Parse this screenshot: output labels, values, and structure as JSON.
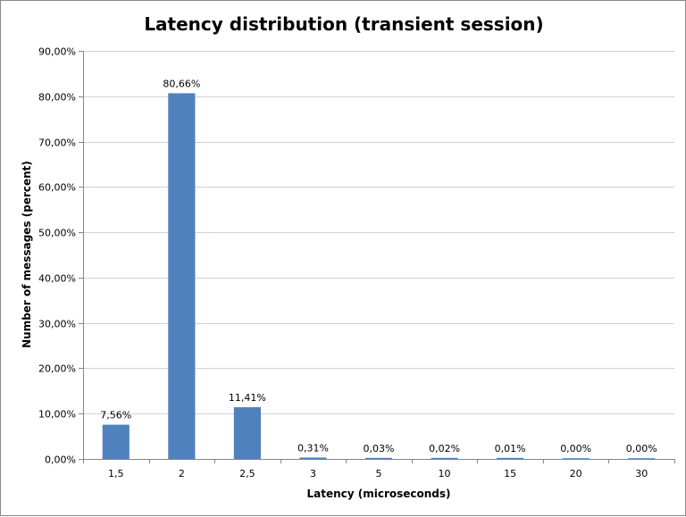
{
  "chart_data": {
    "type": "bar",
    "title": "Latency distribution (transient session)",
    "xlabel": "Latency (microseconds)",
    "ylabel": "Number of messages (percent)",
    "categories": [
      "1,5",
      "2",
      "2,5",
      "3",
      "5",
      "10",
      "15",
      "20",
      "30"
    ],
    "values": [
      7.56,
      80.66,
      11.41,
      0.31,
      0.03,
      0.02,
      0.01,
      0.0,
      0.0
    ],
    "data_labels": [
      "7,56%",
      "80,66%",
      "11,41%",
      "0,31%",
      "0,03%",
      "0,02%",
      "0,01%",
      "0,00%",
      "0,00%"
    ],
    "ylim": [
      0,
      90
    ],
    "yticks": [
      0,
      10,
      20,
      30,
      40,
      50,
      60,
      70,
      80,
      90
    ],
    "ytick_labels": [
      "0,00%",
      "10,00%",
      "20,00%",
      "30,00%",
      "40,00%",
      "50,00%",
      "60,00%",
      "70,00%",
      "80,00%",
      "90,00%"
    ],
    "grid": true,
    "legend": "none",
    "bar_color": "#4f81bd"
  }
}
